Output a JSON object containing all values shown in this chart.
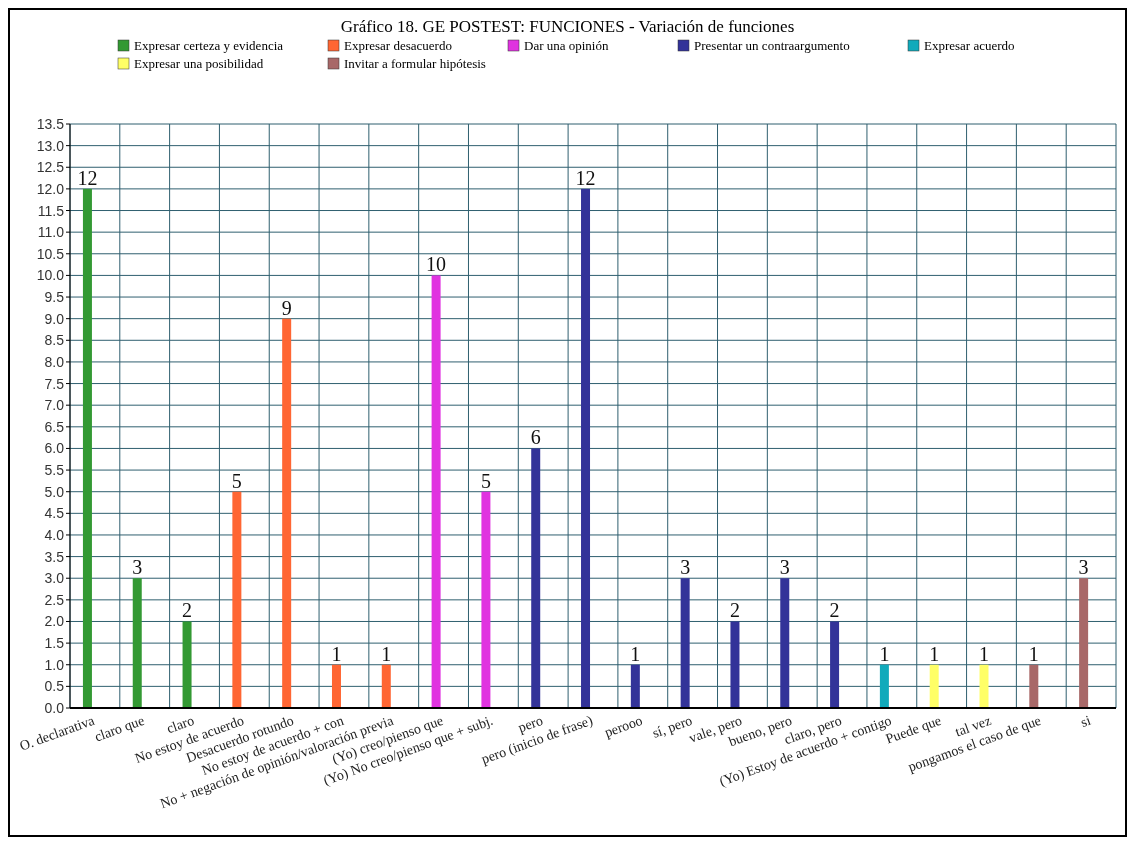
{
  "chart_data": {
    "type": "bar",
    "title": "Gráfico 18. GE POSTEST: FUNCIONES - Variación de funciones",
    "categories": [
      "O. declarativa",
      "claro que",
      "claro",
      "No estoy de acuerdo",
      "Desacuerdo rotundo",
      "No estoy de acuerdo + con",
      "No + negación de opinión/valoración previa",
      "(Yo) creo/pienso que",
      "(Yo) No creo/pienso que + subj.",
      "pero",
      "pero (inicio de frase)",
      "perooo",
      "sí, pero",
      "vale, pero",
      "bueno, pero",
      "claro, pero",
      "(Yo) Estoy de acuerdo + contigo",
      "Puede que",
      "tal vez",
      "pongamos el caso de que",
      "si"
    ],
    "series": [
      {
        "name": "Expresar certeza y evidencia",
        "color": "#339933",
        "values": [
          12,
          3,
          2,
          null,
          null,
          null,
          null,
          null,
          null,
          null,
          null,
          null,
          null,
          null,
          null,
          null,
          null,
          null,
          null,
          null,
          null
        ]
      },
      {
        "name": "Expresar desacuerdo",
        "color": "#ff6633",
        "values": [
          null,
          null,
          null,
          5,
          9,
          1,
          1,
          null,
          null,
          null,
          null,
          null,
          null,
          null,
          null,
          null,
          null,
          null,
          null,
          null,
          null
        ]
      },
      {
        "name": "Dar una opinión",
        "color": "#e033e0",
        "values": [
          null,
          null,
          null,
          null,
          null,
          null,
          null,
          10,
          5,
          null,
          null,
          null,
          null,
          null,
          null,
          null,
          null,
          null,
          null,
          null,
          null
        ]
      },
      {
        "name": "Presentar un contraargumento",
        "color": "#333399",
        "values": [
          null,
          null,
          null,
          null,
          null,
          null,
          null,
          null,
          null,
          6,
          12,
          1,
          3,
          2,
          3,
          2,
          null,
          null,
          null,
          null,
          null
        ]
      },
      {
        "name": "Expresar acuerdo",
        "color": "#11aabb",
        "values": [
          null,
          null,
          null,
          null,
          null,
          null,
          null,
          null,
          null,
          null,
          null,
          null,
          null,
          null,
          null,
          null,
          1,
          null,
          null,
          null,
          null
        ]
      },
      {
        "name": "Expresar una posibilidad",
        "color": "#ffff66",
        "values": [
          null,
          null,
          null,
          null,
          null,
          null,
          null,
          null,
          null,
          null,
          null,
          null,
          null,
          null,
          null,
          null,
          null,
          1,
          1,
          null,
          null
        ]
      },
      {
        "name": "Invitar a formular hipótesis",
        "color": "#a86868",
        "values": [
          null,
          null,
          null,
          null,
          null,
          null,
          null,
          null,
          null,
          null,
          null,
          null,
          null,
          null,
          null,
          null,
          null,
          null,
          null,
          1,
          3
        ]
      }
    ],
    "ylim": [
      0,
      13.5
    ],
    "yticks": [
      {
        "value": 0,
        "label": "0.0"
      },
      {
        "value": 0.5,
        "label": "0.5"
      },
      {
        "value": 1,
        "label": "1.0"
      },
      {
        "value": 1.5,
        "label": "1.5"
      },
      {
        "value": 2,
        "label": "2.0"
      },
      {
        "value": 2.5,
        "label": "2.5"
      },
      {
        "value": 3,
        "label": "3.0"
      },
      {
        "value": 3.5,
        "label": "3.5"
      },
      {
        "value": 4,
        "label": "4.0"
      },
      {
        "value": 4.5,
        "label": "4.5"
      },
      {
        "value": 5,
        "label": "5.0"
      },
      {
        "value": 5.5,
        "label": "5.5"
      },
      {
        "value": 6,
        "label": "6.0"
      },
      {
        "value": 6.5,
        "label": "6.5"
      },
      {
        "value": 7,
        "label": "7.0"
      },
      {
        "value": 7.5,
        "label": "7.5"
      },
      {
        "value": 8,
        "label": "8.0"
      },
      {
        "value": 8.5,
        "label": "8.5"
      },
      {
        "value": 9,
        "label": "9.0"
      },
      {
        "value": 9.5,
        "label": "9.5"
      },
      {
        "value": 10,
        "label": "10.0"
      },
      {
        "value": 10.5,
        "label": "10.5"
      },
      {
        "value": 11,
        "label": "11.0"
      },
      {
        "value": 11.5,
        "label": "11.5"
      },
      {
        "value": 12,
        "label": "12.0"
      },
      {
        "value": 12.5,
        "label": "12.5"
      },
      {
        "value": 13,
        "label": "13.0"
      },
      {
        "value": 13.5,
        "label": "13.5"
      }
    ],
    "grid": true,
    "legend": "top",
    "data_labels": true
  }
}
